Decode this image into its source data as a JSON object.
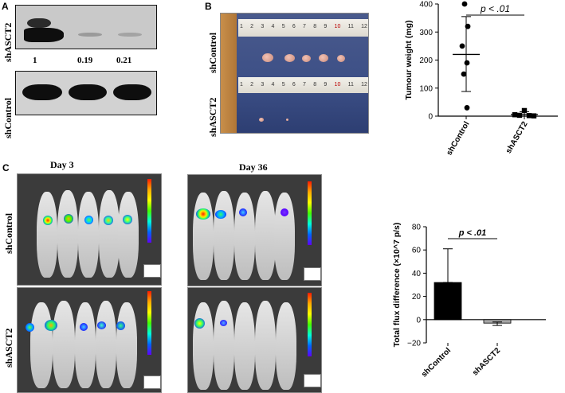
{
  "panel_a": {
    "letter": "A",
    "row_label_top": "shASCT2",
    "row_label_bottom": "shControl",
    "band_values": [
      "1",
      "0.19",
      "0.21"
    ]
  },
  "panel_b": {
    "letter": "B",
    "row_label_top": "shControl",
    "row_label_bottom": "shASCT2",
    "ruler_numbers": [
      "1",
      "2",
      "3",
      "4",
      "5",
      "6",
      "7",
      "8",
      "9",
      "10",
      "11",
      "12"
    ]
  },
  "panel_c": {
    "letter": "C",
    "day_left": "Day 3",
    "day_right": "Day 36",
    "row_label_top": "shControl",
    "row_label_bottom": "shASCT2"
  },
  "chart_data": [
    {
      "type": "scatter",
      "title": "",
      "ylabel": "Tumour weight (mg)",
      "ylim": [
        0,
        400
      ],
      "yticks": [
        "0",
        "100",
        "200",
        "300",
        "400"
      ],
      "categories": [
        "shControl",
        "shASCT2"
      ],
      "annotation": "p < .01",
      "series": [
        {
          "name": "shControl",
          "marker": "circle",
          "values": [
            400,
            320,
            250,
            190,
            150,
            30
          ],
          "mean": 220,
          "sd_upper": 355,
          "sd_lower": 88
        },
        {
          "name": "shASCT2",
          "marker": "square",
          "values": [
            20,
            5,
            3,
            2,
            1
          ],
          "mean": 6,
          "sd_upper": 16,
          "sd_lower": 0
        }
      ]
    },
    {
      "type": "bar",
      "title": "",
      "ylabel": "Total flux difference (×10^7 p/s)",
      "ylim": [
        -20,
        80
      ],
      "yticks": [
        "−20",
        "0",
        "20",
        "40",
        "60",
        "80"
      ],
      "categories": [
        "shControl",
        "shASCT2"
      ],
      "values": [
        32,
        -3
      ],
      "error_upper": [
        61,
        -2
      ],
      "error_lower": [
        32,
        -5
      ],
      "colors": [
        "#000000",
        "#a6a6a6"
      ],
      "annotation": "p < .01"
    }
  ]
}
